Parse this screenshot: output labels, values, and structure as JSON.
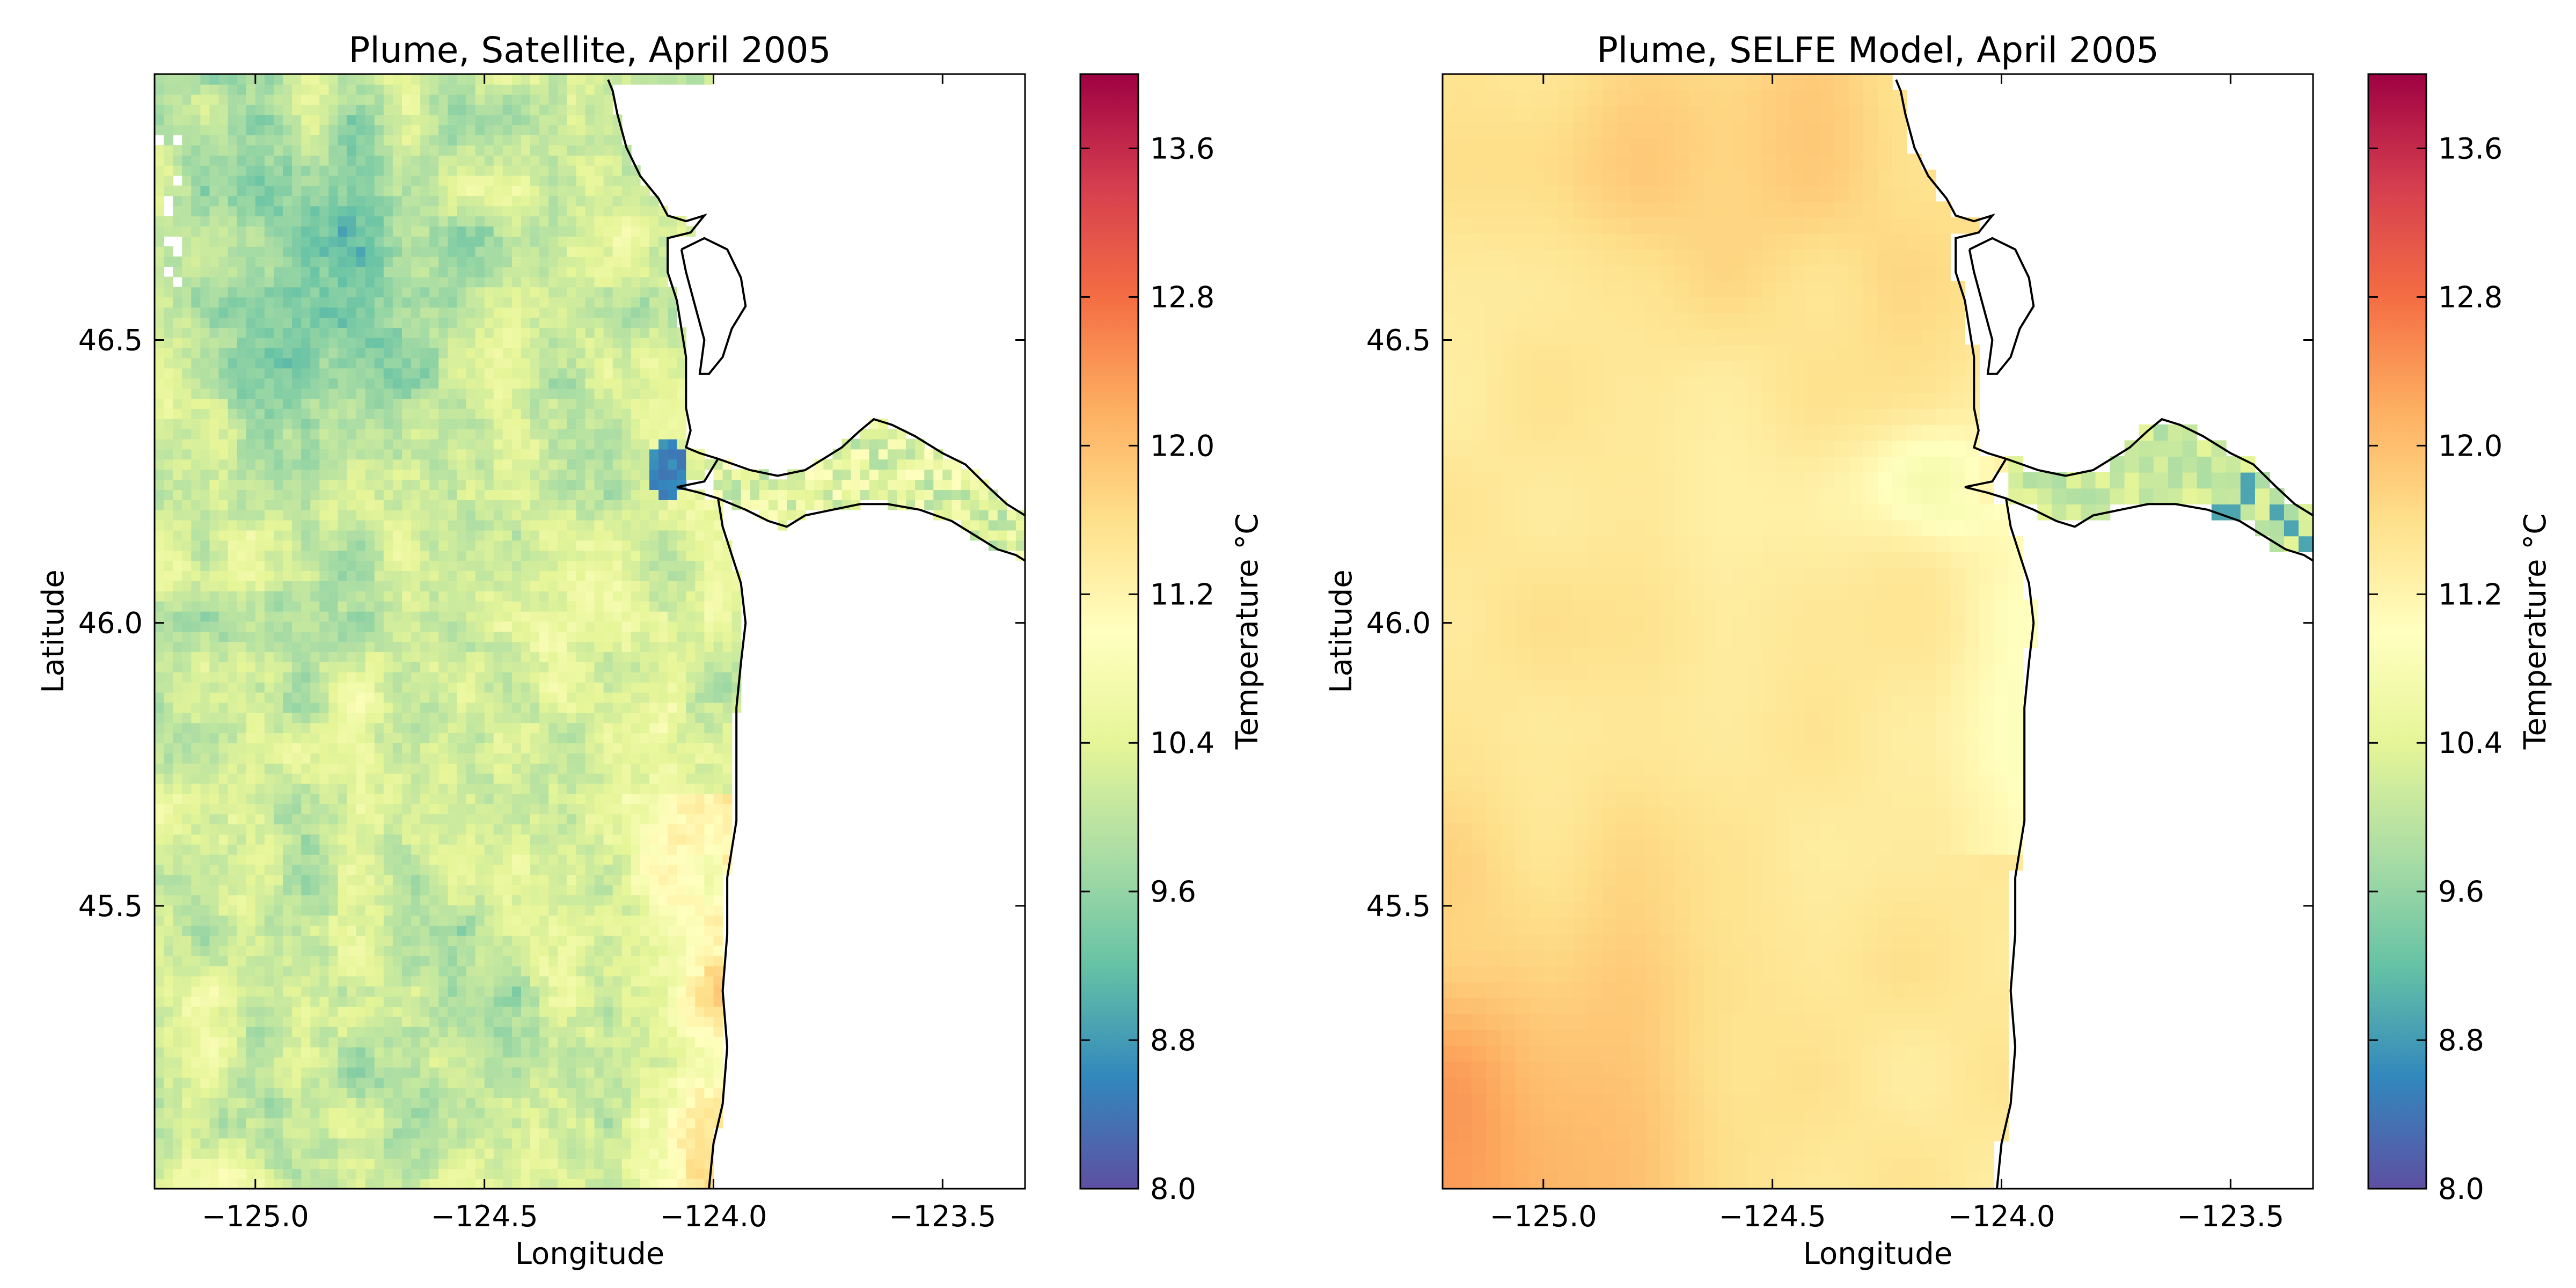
{
  "chart_data": [
    {
      "type": "heatmap",
      "title": "Plume, Satellite, April 2005",
      "xlabel": "Longitude",
      "ylabel": "Latitude",
      "xlim": [
        -125.22,
        -123.32
      ],
      "ylim": [
        45.0,
        46.97
      ],
      "xticks": [
        -125.0,
        -124.5,
        -124.0,
        -123.5
      ],
      "yticks": [
        45.5,
        46.0,
        46.5
      ],
      "xtick_labels": [
        "−125.0",
        "−124.5",
        "−124.0",
        "−123.5"
      ],
      "ytick_labels": [
        "45.5",
        "46.0",
        "46.5"
      ],
      "colorbar": {
        "label": "Temperature °C",
        "range": [
          8.0,
          14.0
        ],
        "ticks": [
          8.0,
          8.8,
          9.6,
          10.4,
          11.2,
          12.0,
          12.8,
          13.6
        ],
        "tick_labels": [
          "8.0",
          "8.8",
          "9.6",
          "10.4",
          "11.2",
          "12.0",
          "12.8",
          "13.6"
        ],
        "colormap": "Spectral_r"
      },
      "field_summary": {
        "offshore_mean_c": 10.3,
        "cool_patch_c": 9.4,
        "nearshore_south_c": 11.6,
        "river_mouth_c": 8.3,
        "estuary_c": 10.6
      }
    },
    {
      "type": "heatmap",
      "title": "Plume, SELFE Model, April 2005",
      "xlabel": "Longitude",
      "ylabel": "Latitude",
      "xlim": [
        -125.22,
        -123.32
      ],
      "ylim": [
        45.0,
        46.97
      ],
      "xticks": [
        -125.0,
        -124.5,
        -124.0,
        -123.5
      ],
      "yticks": [
        45.5,
        46.0,
        46.5
      ],
      "xtick_labels": [
        "−125.0",
        "−124.5",
        "−124.0",
        "−123.5"
      ],
      "ytick_labels": [
        "45.5",
        "46.0",
        "46.5"
      ],
      "colorbar": {
        "label": "Temperature °C",
        "range": [
          8.0,
          14.0
        ],
        "ticks": [
          8.0,
          8.8,
          9.6,
          10.4,
          11.2,
          12.0,
          12.8,
          13.6
        ],
        "tick_labels": [
          "8.0",
          "8.8",
          "9.6",
          "10.4",
          "11.2",
          "12.0",
          "12.8",
          "13.6"
        ],
        "colormap": "Spectral_r"
      },
      "field_summary": {
        "offshore_mean_c": 11.5,
        "southwest_corner_c": 12.2,
        "nearshore_c": 11.1,
        "plume_core_c": 10.6,
        "estuary_c": 10.2
      }
    }
  ],
  "colors": {
    "land": "#ffffff",
    "coastline": "#000000",
    "frame": "#000000"
  }
}
